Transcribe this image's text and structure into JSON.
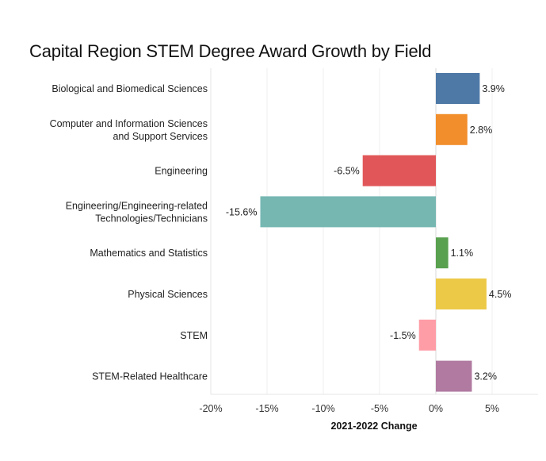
{
  "chart_data": {
    "type": "bar",
    "orientation": "horizontal",
    "title": "Capital Region STEM Degree Award Growth by Field",
    "xlabel": "2021-2022 Change",
    "ylabel": "",
    "xlim": [
      -20,
      9
    ],
    "grid": true,
    "categories": [
      [
        "Biological and Biomedical Sciences"
      ],
      [
        "Computer and Information Sciences",
        "and Support Services"
      ],
      [
        "Engineering"
      ],
      [
        "Engineering/Engineering-related",
        "Technologies/Technicians"
      ],
      [
        "Mathematics and Statistics"
      ],
      [
        "Physical Sciences"
      ],
      [
        "STEM"
      ],
      [
        "STEM-Related Healthcare"
      ]
    ],
    "values": [
      3.9,
      2.8,
      -6.5,
      -15.6,
      1.1,
      4.5,
      -1.5,
      3.2
    ],
    "value_labels": [
      "3.9%",
      "2.8%",
      "-6.5%",
      "-15.6%",
      "1.1%",
      "4.5%",
      "-1.5%",
      "3.2%"
    ],
    "colors": [
      "#4e79a7",
      "#f28e2b",
      "#e15759",
      "#76b7b2",
      "#59a14f",
      "#edc948",
      "#ff9da7",
      "#b07aa1"
    ],
    "ticks": [
      -20,
      -15,
      -10,
      -5,
      0,
      5
    ],
    "tick_labels": [
      "-20%",
      "-15%",
      "-10%",
      "-5%",
      "0%",
      "5%"
    ]
  }
}
